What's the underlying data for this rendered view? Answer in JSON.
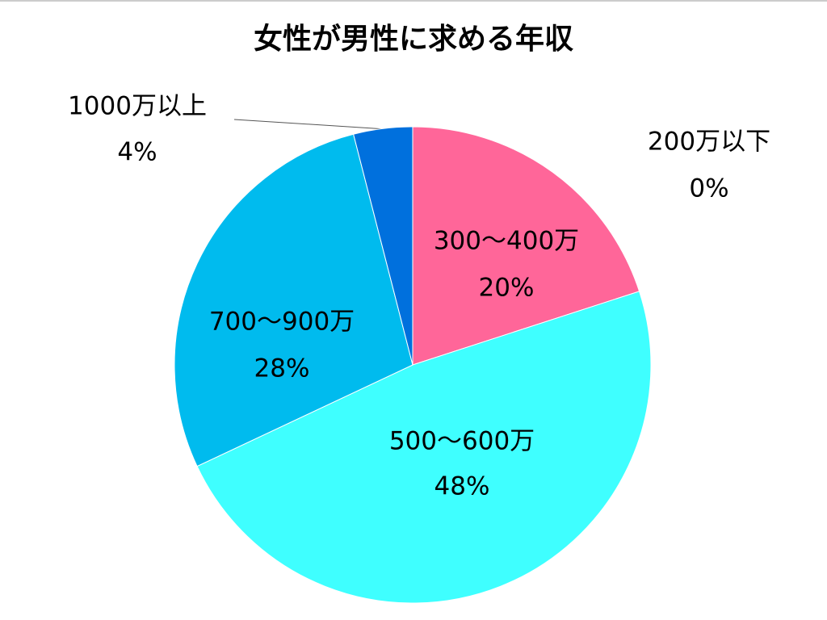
{
  "chart_data": {
    "type": "pie",
    "title": "女性が男性に求める年収",
    "categories": [
      "200万以下",
      "300～400万",
      "500～600万",
      "700～900万",
      "1000万以上"
    ],
    "values": [
      0,
      20,
      48,
      28,
      4
    ],
    "value_labels": [
      "0%",
      "20%",
      "48%",
      "28%",
      "4%"
    ],
    "colors": [
      "#ff6699",
      "#ff6699",
      "#3fffff",
      "#00bbee",
      "#0070dd"
    ]
  }
}
